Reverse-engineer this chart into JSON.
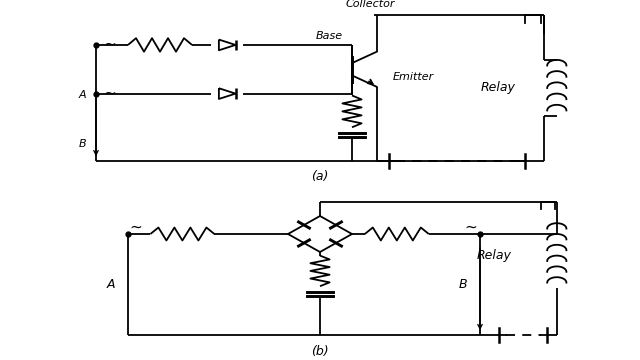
{
  "background_color": "#ffffff",
  "label_a": "A",
  "label_b": "B",
  "label_collector": "Collector",
  "label_base": "Base",
  "label_emitter": "Emitter",
  "label_relay": "Relay",
  "label_fig_a": "(a)",
  "label_fig_b": "(b)"
}
